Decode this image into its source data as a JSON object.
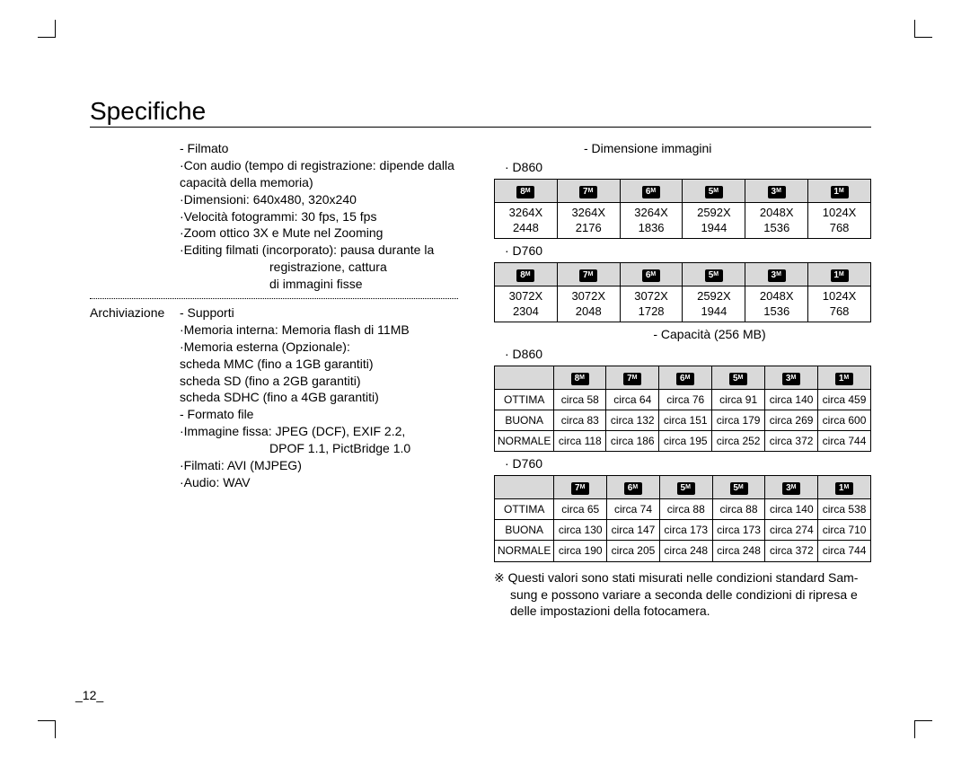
{
  "title": "Specifiche",
  "page_number": "_12_",
  "left": {
    "filmato_header": "- Filmato",
    "filmato_lines": [
      "·Con audio (tempo di registrazione: dipende dalla",
      " capacità della memoria)",
      "·Dimensioni: 640x480, 320x240",
      "·Velocità fotogrammi: 30 fps, 15 fps",
      "·Zoom ottico 3X e Mute nel Zooming",
      "·Editing filmati (incorporato): pausa durante la"
    ],
    "filmato_indented": [
      "registrazione, cattura",
      "di immagini fisse"
    ],
    "storage_label": "Archiviazione",
    "storage_lines": [
      "- Supporti",
      "·Memoria interna: Memoria flash di 11MB",
      "·Memoria esterna (Opzionale):",
      " scheda MMC (fino a 1GB garantiti)",
      " scheda SD (fino a 2GB garantiti)",
      " scheda SDHC (fino a 4GB garantiti)",
      "- Formato file",
      "·Immagine fissa: JPEG (DCF), EXIF 2.2,"
    ],
    "storage_indent2": "DPOF 1.1, PictBridge 1.0",
    "storage_lines2": [
      "·Filmati: AVI (MJPEG)",
      "·Audio: WAV"
    ]
  },
  "right": {
    "dim_header": "- Dimensione immagini",
    "d860_label": "· D860",
    "d760_label": "· D760",
    "capacity_label": "- Capacità (256 MB)",
    "dim_d860_badges": [
      "8",
      "7",
      "6",
      "5",
      "3",
      "1"
    ],
    "dim_d860_row": [
      "3264X 2448",
      "3264X 2176",
      "3264X 1836",
      "2592X 1944",
      "2048X 1536",
      "1024X 768"
    ],
    "dim_d760_badges": [
      "8",
      "7",
      "6",
      "5",
      "3",
      "1"
    ],
    "dim_d760_row": [
      "3072X 2304",
      "3072X 2048",
      "3072X 1728",
      "2592X 1944",
      "2048X 1536",
      "1024X 768"
    ],
    "cap_d860_badges": [
      "8",
      "7",
      "6",
      "5",
      "3",
      "1"
    ],
    "cap_rows_labels": [
      "OTTIMA",
      "BUONA",
      "NORMALE"
    ],
    "cap_d860_rows": [
      [
        "circa 58",
        "circa 64",
        "circa 76",
        "circa 91",
        "circa 140",
        "circa 459"
      ],
      [
        "circa 83",
        "circa 132",
        "circa 151",
        "circa 179",
        "circa 269",
        "circa 600"
      ],
      [
        "circa 118",
        "circa 186",
        "circa 195",
        "circa 252",
        "circa 372",
        "circa 744"
      ]
    ],
    "cap_d760_badges": [
      "7",
      "6",
      "5",
      "5",
      "3",
      "1"
    ],
    "cap_d760_rows": [
      [
        "circa 65",
        "circa 74",
        "circa 88",
        "circa 88",
        "circa 140",
        "circa 538"
      ],
      [
        "circa 130",
        "circa 147",
        "circa 173",
        "circa 173",
        "circa 274",
        "circa 710"
      ],
      [
        "circa 190",
        "circa 205",
        "circa 248",
        "circa 248",
        "circa 372",
        "circa 744"
      ]
    ],
    "footnote_lines": [
      "※ Questi valori sono stati misurati nelle condizioni standard Sam-",
      "sung e possono variare a seconda delle condizioni di ripresa e",
      "delle impostazioni della fotocamera."
    ]
  }
}
